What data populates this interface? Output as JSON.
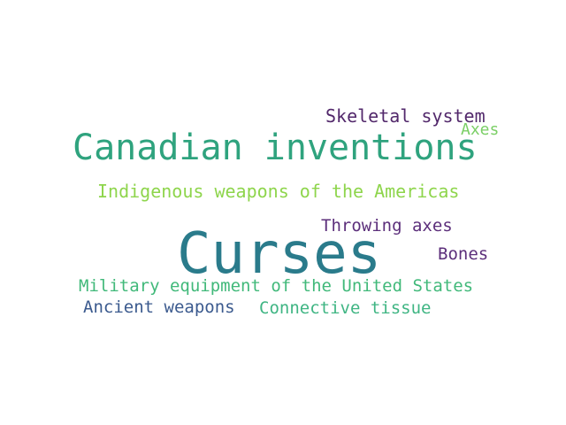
{
  "words": [
    {
      "id": "skeletal",
      "text": "Skeletal system",
      "color": "#52286b"
    },
    {
      "id": "canadian",
      "text": "Canadian inventions",
      "color": "#2fa37e"
    },
    {
      "id": "axes",
      "text": "Axes",
      "color": "#7bcf66"
    },
    {
      "id": "indig",
      "text": "Indigenous weapons of the Americas",
      "color": "#8ed54c"
    },
    {
      "id": "throwing",
      "text": "Throwing axes",
      "color": "#5c2f7b"
    },
    {
      "id": "curses",
      "text": "Curses",
      "color": "#2a7b8b"
    },
    {
      "id": "bones",
      "text": "Bones",
      "color": "#5c2f7b"
    },
    {
      "id": "military",
      "text": "Military equipment of the United States",
      "color": "#41b97a"
    },
    {
      "id": "ancient",
      "text": "Ancient weapons",
      "color": "#3b5a8e"
    },
    {
      "id": "connect",
      "text": "Connective tissue",
      "color": "#3fb583"
    }
  ]
}
